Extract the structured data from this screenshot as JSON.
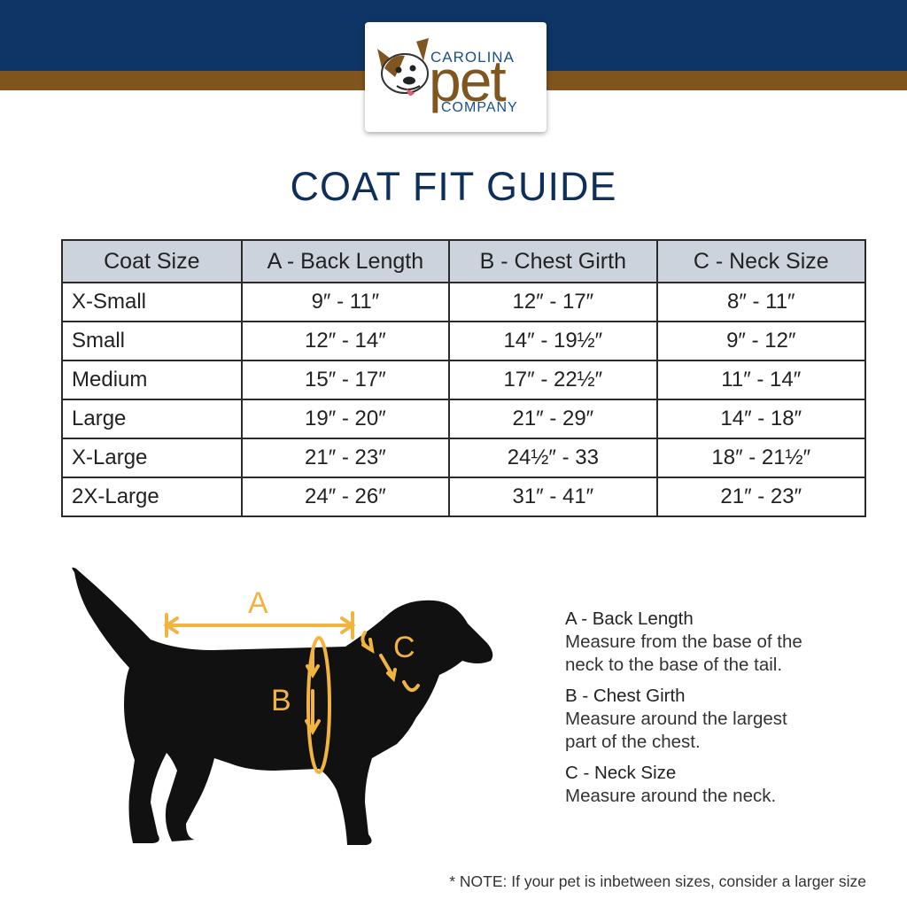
{
  "brand": {
    "line1": "CAROLINA",
    "line2": "pet",
    "line3": "COMPANY",
    "logo_icon": "dog-face-icon",
    "colors": {
      "navy": "#0e3565",
      "brown": "#80551d",
      "accent": "#f2b441"
    }
  },
  "title": "COAT FIT GUIDE",
  "table": {
    "headers": [
      "Coat Size",
      "A - Back Length",
      "B - Chest Girth",
      "C - Neck Size"
    ],
    "rows": [
      [
        "X-Small",
        "9″ - 11″",
        "12″ - 17″",
        "8″ - 11″"
      ],
      [
        "Small",
        "12″ - 14″",
        "14″ - 19½″",
        "9″ - 12″"
      ],
      [
        "Medium",
        "15″ - 17″",
        "17″ - 22½″",
        "11″ - 14″"
      ],
      [
        "Large",
        "19″ - 20″",
        "21″ - 29″",
        "14″ - 18″"
      ],
      [
        "X-Large",
        "21″ - 23″",
        "24½″ - 33",
        "18″ - 21½″"
      ],
      [
        "2X-Large",
        "24″ - 26″",
        "31″ - 41″",
        "21″ - 23″"
      ]
    ]
  },
  "diagram": {
    "icon": "dog-silhouette-icon",
    "labels": {
      "a": "A",
      "b": "B",
      "c": "C"
    }
  },
  "legend": [
    {
      "heading": "A - Back Length",
      "lines": [
        "Measure from the base of the",
        "neck to the base of the tail."
      ]
    },
    {
      "heading": "B - Chest Girth",
      "lines": [
        "Measure around the largest",
        "part of the chest."
      ]
    },
    {
      "heading": "C - Neck Size",
      "lines": [
        "Measure around the neck."
      ]
    }
  ],
  "note": "* NOTE: If your pet is inbetween sizes, consider a larger size"
}
